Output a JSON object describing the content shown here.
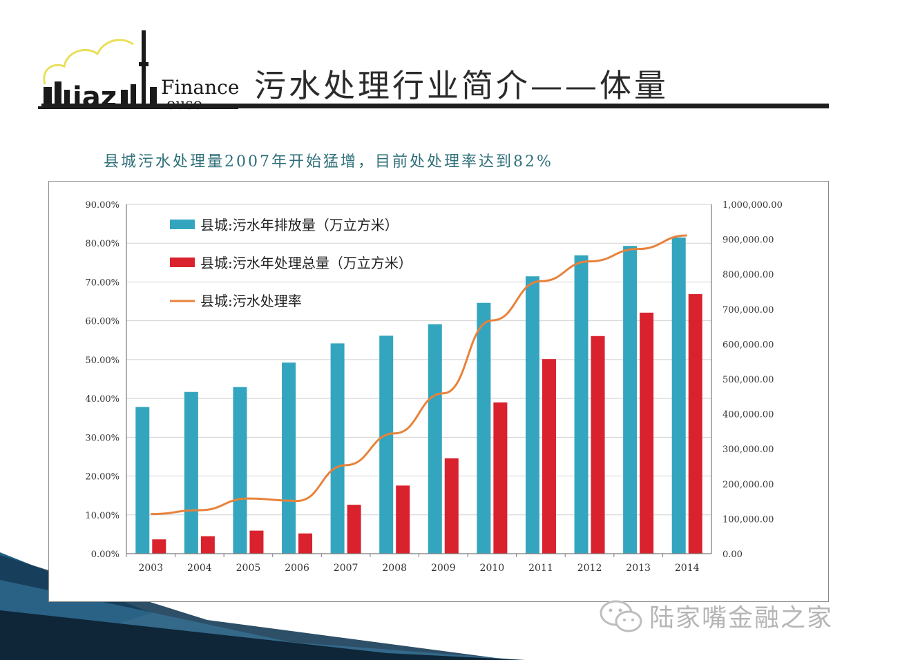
{
  "logo": {
    "brand_text": "Finance",
    "brand_text_2": "ouse",
    "mark_text": "iaz"
  },
  "slide": {
    "title": "污水处理行业简介——体量",
    "subtitle": "县城污水处理量2007年开始猛增，目前处处理率达到82%"
  },
  "watermark": {
    "text": "陆家嘴金融之家",
    "icon": "wechat-icon"
  },
  "colors": {
    "discharge": "#34a5bf",
    "treated": "#d9222e",
    "rate": "#e8823a"
  },
  "chart_data": {
    "type": "bar",
    "categories": [
      "2003",
      "2004",
      "2005",
      "2006",
      "2007",
      "2008",
      "2009",
      "2010",
      "2011",
      "2012",
      "2013",
      "2014"
    ],
    "series": [
      {
        "name": "县城:污水年排放量（万立方米）",
        "type": "bar",
        "axis": "right",
        "values": [
          420000,
          463000,
          477000,
          547000,
          602000,
          624000,
          657000,
          718000,
          794000,
          854000,
          881000,
          905000
        ]
      },
      {
        "name": "县城:污水年处理总量（万立方米）",
        "type": "bar",
        "axis": "right",
        "values": [
          41000,
          50000,
          66000,
          58000,
          140000,
          195000,
          273000,
          433000,
          557000,
          623000,
          690000,
          743000
        ]
      },
      {
        "name": "县城:污水处理率",
        "type": "line",
        "axis": "left",
        "values": [
          10.2,
          11.2,
          14.2,
          13.6,
          22.8,
          31.0,
          41.3,
          60.1,
          70.2,
          75.3,
          78.5,
          82.0
        ]
      }
    ],
    "y_left": {
      "min": 0,
      "max": 90,
      "step": 10,
      "tick_labels": [
        "0.00%",
        "10.00%",
        "20.00%",
        "30.00%",
        "40.00%",
        "50.00%",
        "60.00%",
        "70.00%",
        "80.00%",
        "90.00%"
      ]
    },
    "y_right": {
      "min": 0,
      "max": 1000000,
      "step": 100000,
      "tick_labels": [
        "0.00",
        "100,000.00",
        "200,000.00",
        "300,000.00",
        "400,000.00",
        "500,000.00",
        "600,000.00",
        "700,000.00",
        "800,000.00",
        "900,000.00",
        "1,000,000.00"
      ]
    },
    "grid": true,
    "legend_position": "top-left"
  }
}
